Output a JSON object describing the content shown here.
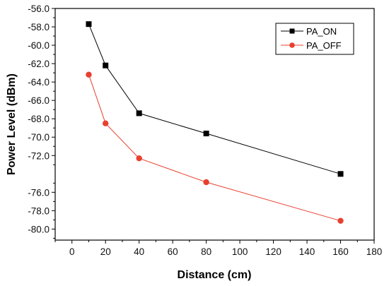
{
  "chart_data": {
    "type": "line",
    "xlabel": "Distance (cm)",
    "ylabel": "Power Level (dBm)",
    "xlim": [
      -10,
      180
    ],
    "ylim": [
      -81.2,
      -56.0
    ],
    "x_ticks": [
      0,
      20,
      40,
      60,
      80,
      100,
      120,
      140,
      160,
      180
    ],
    "x_tick_labels": [
      "0",
      "20",
      "40",
      "60",
      "80",
      "100",
      "120",
      "140",
      "160",
      "180"
    ],
    "y_ticks": [
      -56,
      -58,
      -60,
      -62,
      -64,
      -66,
      -68,
      -70,
      -72,
      -76,
      -78,
      -80
    ],
    "y_tick_labels": [
      "-56.0",
      "-58.0",
      "-60.0",
      "-62.0",
      "-64.0",
      "-66.0",
      "-68.0",
      "-70.0",
      "-72.0",
      "-76.0",
      "-78.0",
      "-80.0"
    ],
    "legend_position": "top-right",
    "grid": false,
    "series": [
      {
        "name": "PA_ON",
        "color": "#000000",
        "marker": "square",
        "x": [
          10,
          20,
          40,
          80,
          160
        ],
        "y": [
          -57.7,
          -62.2,
          -67.4,
          -69.6,
          -74.0
        ]
      },
      {
        "name": "PA_OFF",
        "color": "#e8402e",
        "marker": "circle",
        "x": [
          10,
          20,
          40,
          80,
          160
        ],
        "y": [
          -63.2,
          -68.5,
          -72.3,
          -74.9,
          -79.1
        ]
      }
    ]
  }
}
